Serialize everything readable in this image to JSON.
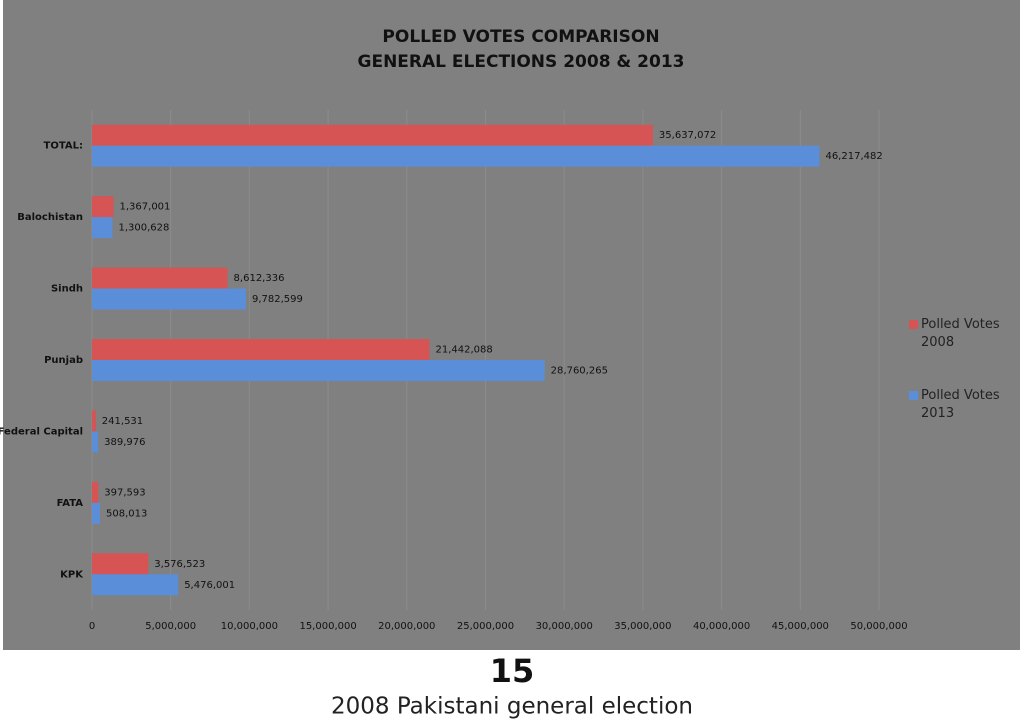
{
  "chart_data": {
    "type": "hbar",
    "title": "POLLED VOTES COMPARISON",
    "subtitle": "GENERAL ELECTIONS 2008 & 2013",
    "categories": [
      "TOTAL:",
      "Balochistan",
      "Sindh",
      "Punjab",
      "Federal Capital",
      "FATA",
      "KPK"
    ],
    "series": [
      {
        "name": "Polled Votes 2008",
        "color": "#d65454",
        "values": [
          35637072,
          1367001,
          8612336,
          21442088,
          241531,
          397593,
          3576523
        ],
        "value_labels": [
          "35,637,072",
          "1,367,001",
          "8,612,336",
          "21,442,088",
          "241,531",
          "397,593",
          "3,576,523"
        ]
      },
      {
        "name": "Polled Votes 2013",
        "color": "#5b8ed8",
        "values": [
          46217482,
          1300628,
          9782599,
          28760265,
          389976,
          508013,
          5476001
        ],
        "value_labels": [
          "46,217,482",
          "1,300,628",
          "9,782,599",
          "28,760,265",
          "389,976",
          "508,013",
          "5,476,001"
        ]
      }
    ],
    "xlim": [
      0,
      50000000
    ],
    "xticks": [
      0,
      {
        "value": 5000000,
        "label": "5,000,000"
      },
      {
        "value": 10000000,
        "label": "10,000,000"
      },
      {
        "value": 15000000,
        "label": "15,000,000"
      },
      {
        "value": 20000000,
        "label": "20,000,000"
      },
      {
        "value": 25000000,
        "label": "25,000,000"
      },
      {
        "value": 30000000,
        "label": "30,000,000"
      },
      {
        "value": 35000000,
        "label": "35,000,000"
      },
      {
        "value": 40000000,
        "label": "40,000,000"
      },
      {
        "value": 45000000,
        "label": "45,000,000"
      },
      {
        "value": 50000000,
        "label": "50,000,000"
      }
    ],
    "grid": true,
    "legend": "right"
  },
  "caption": {
    "number": "15",
    "text": "2008 Pakistani general election"
  }
}
